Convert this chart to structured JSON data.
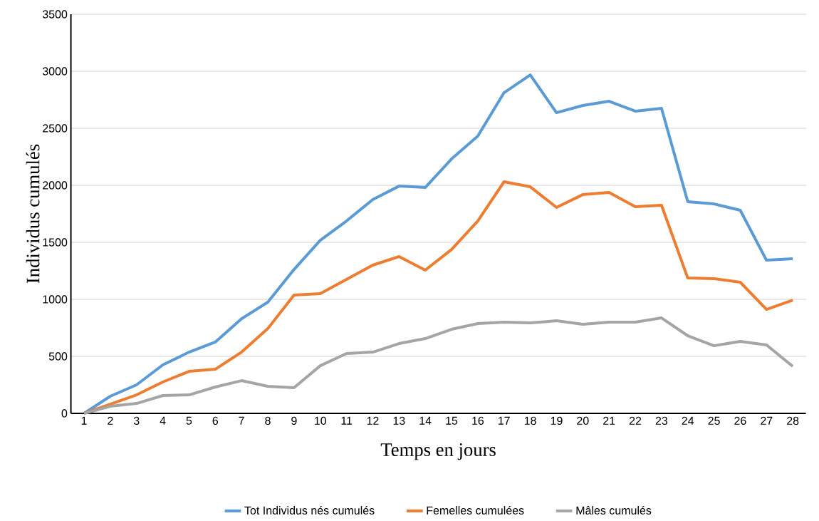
{
  "chart_data": {
    "type": "line",
    "xlabel": "Temps en jours",
    "ylabel": "Individus cumulés",
    "categories": [
      "1",
      "2",
      "3",
      "4",
      "5",
      "6",
      "7",
      "8",
      "9",
      "10",
      "11",
      "12",
      "13",
      "14",
      "15",
      "16",
      "17",
      "18",
      "19",
      "20",
      "21",
      "22",
      "23",
      "24",
      "25",
      "26",
      "27",
      "28"
    ],
    "series": [
      {
        "name": "Tot Individus nés  cumulés",
        "color": "#5b9bd5",
        "values": [
          0,
          150,
          250,
          425,
          537,
          625,
          830,
          975,
          1262,
          1518,
          1687,
          1875,
          1993,
          1981,
          2231,
          2431,
          2812,
          2968,
          2637,
          2700,
          2737,
          2650,
          2675,
          1856,
          1837,
          1781,
          1343,
          1356
        ]
      },
      {
        "name": "Femelles cumulées",
        "color": "#ed7d31",
        "values": [
          0,
          80,
          162,
          275,
          368,
          387,
          537,
          743,
          1037,
          1050,
          1175,
          1300,
          1375,
          1256,
          1437,
          1687,
          2031,
          1987,
          1806,
          1918,
          1937,
          1812,
          1825,
          1187,
          1181,
          1150,
          912,
          993
        ]
      },
      {
        "name": "Mâles cumulés",
        "color": "#a5a5a5",
        "values": [
          0,
          62,
          87,
          156,
          162,
          231,
          287,
          237,
          225,
          418,
          525,
          537,
          612,
          656,
          737,
          787,
          800,
          793,
          812,
          781,
          800,
          800,
          837,
          681,
          593,
          631,
          600,
          412
        ]
      }
    ],
    "ylim": [
      0,
      3500
    ],
    "yticks": [
      0,
      500,
      1000,
      1500,
      2000,
      2500,
      3000,
      3500
    ],
    "grid": "y",
    "legend": "bottom",
    "marker": "none",
    "line_style": "solid"
  }
}
